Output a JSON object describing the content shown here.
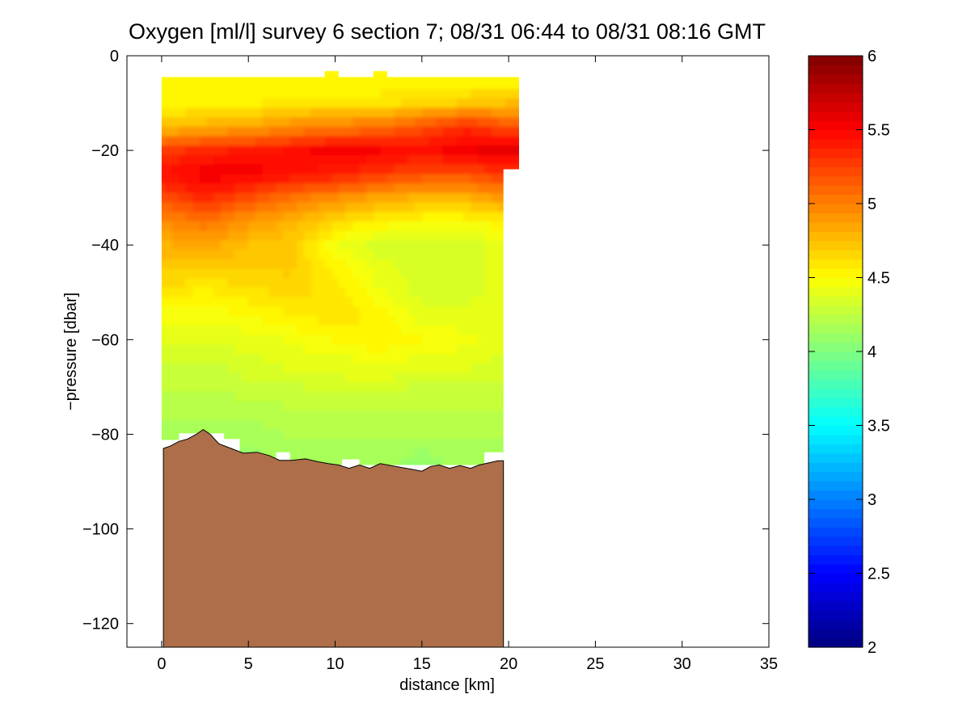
{
  "chart_data": {
    "type": "heatmap",
    "title": "Oxygen [ml/l] survey 6 section 7; 08/31 06:44 to 08/31 08:16 GMT",
    "xlabel": "distance [km]",
    "ylabel": "−pressure [dbar]",
    "xlim": [
      -2,
      35
    ],
    "ylim": [
      -125,
      0
    ],
    "x_ticks": [
      0,
      5,
      10,
      15,
      20,
      25,
      30,
      35
    ],
    "x_tick_labels": [
      "0",
      "5",
      "10",
      "15",
      "20",
      "25",
      "30",
      "35"
    ],
    "y_ticks": [
      0,
      -20,
      -40,
      -60,
      -80,
      -100,
      -120
    ],
    "y_tick_labels": [
      "0",
      "−20",
      "−40",
      "−60",
      "−80",
      "−100",
      "−120"
    ],
    "colorbar": {
      "clim": [
        2,
        6
      ],
      "ticks": [
        2,
        2.5,
        3,
        3.5,
        4,
        4.5,
        5,
        5.5,
        6
      ],
      "tick_labels": [
        "2",
        "2.5",
        "3",
        "3.5",
        "4",
        "4.5",
        "5",
        "5.5",
        "6"
      ],
      "colormap": "jet"
    },
    "field": {
      "x": [
        0,
        2.5,
        5,
        7.5,
        10,
        12.5,
        15,
        17.5,
        19.7
      ],
      "y": [
        -5,
        -10,
        -15,
        -20,
        -25,
        -30,
        -35,
        -40,
        -45,
        -50,
        -55,
        -60,
        -65,
        -70,
        -75,
        -80,
        -85
      ],
      "z": [
        [
          4.5,
          4.5,
          4.5,
          4.5,
          4.5,
          4.5,
          4.5,
          4.5,
          4.5
        ],
        [
          4.5,
          4.55,
          4.55,
          4.6,
          4.6,
          4.6,
          4.65,
          4.7,
          4.75
        ],
        [
          4.75,
          4.8,
          4.85,
          4.95,
          5.0,
          5.05,
          5.2,
          5.35,
          5.2
        ],
        [
          5.25,
          5.35,
          5.4,
          5.45,
          5.55,
          5.5,
          5.45,
          5.55,
          5.6
        ],
        [
          5.45,
          5.55,
          5.55,
          5.45,
          5.4,
          5.3,
          5.2,
          5.2,
          5.3
        ],
        [
          5.2,
          5.35,
          5.2,
          5.05,
          4.95,
          4.85,
          4.8,
          4.8,
          4.9
        ],
        [
          4.95,
          5.05,
          4.9,
          4.8,
          4.65,
          4.55,
          4.5,
          4.5,
          4.55
        ],
        [
          4.8,
          4.85,
          4.75,
          4.7,
          4.45,
          4.35,
          4.35,
          4.35,
          4.4
        ],
        [
          4.7,
          4.7,
          4.7,
          4.7,
          4.55,
          4.4,
          4.35,
          4.35,
          4.4
        ],
        [
          4.6,
          4.55,
          4.6,
          4.65,
          4.6,
          4.45,
          4.35,
          4.35,
          4.4
        ],
        [
          4.45,
          4.45,
          4.5,
          4.55,
          4.6,
          4.55,
          4.4,
          4.4,
          4.4
        ],
        [
          4.4,
          4.4,
          4.4,
          4.45,
          4.5,
          4.55,
          4.5,
          4.45,
          4.4
        ],
        [
          4.3,
          4.3,
          4.35,
          4.4,
          4.4,
          4.45,
          4.4,
          4.4,
          4.35
        ],
        [
          4.25,
          4.25,
          4.3,
          4.3,
          4.35,
          4.35,
          4.3,
          4.3,
          4.3
        ],
        [
          4.2,
          4.2,
          4.2,
          4.25,
          4.25,
          4.25,
          4.25,
          4.25,
          4.25
        ],
        [
          4.15,
          4.15,
          4.15,
          4.2,
          4.2,
          4.2,
          4.2,
          4.2,
          4.2
        ],
        [
          4.1,
          4.1,
          4.1,
          4.15,
          4.15,
          4.15,
          4.1,
          4.15,
          4.15
        ]
      ]
    },
    "bottom_profile": {
      "color": "#ad6e49",
      "x": [
        0.1,
        0.5,
        1.0,
        1.5,
        2.0,
        2.4,
        2.8,
        3.3,
        4.0,
        4.7,
        5.5,
        6.2,
        6.8,
        7.5,
        8.3,
        9.0,
        9.6,
        10.2,
        10.8,
        11.4,
        12.0,
        12.6,
        13.2,
        13.8,
        14.4,
        15.0,
        15.5,
        16.0,
        16.6,
        17.2,
        17.8,
        18.3,
        18.9,
        19.4,
        19.7
      ],
      "y": [
        -83,
        -82.5,
        -81.5,
        -81,
        -80,
        -79,
        -80,
        -82,
        -83,
        -84,
        -83.8,
        -84.5,
        -85.5,
        -85.5,
        -85.2,
        -85.8,
        -86.2,
        -86.5,
        -87.2,
        -86.5,
        -87.2,
        -86.2,
        -86.6,
        -87.0,
        -87.4,
        -87.8,
        -86.8,
        -86.5,
        -87.2,
        -86.6,
        -87.2,
        -86.5,
        -86.0,
        -85.6,
        -85.6
      ]
    },
    "grid": false,
    "legend": "none"
  }
}
